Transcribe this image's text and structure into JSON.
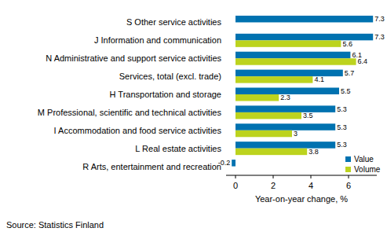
{
  "chart_data": {
    "type": "bar",
    "orientation": "horizontal",
    "categories": [
      "S Other service activities",
      "J Information and communication",
      "N Administrative and support service activities",
      "Services, total (excl. trade)",
      "H Transportation and storage",
      "M Professional, scientific and technical activities",
      "I Accommodation and food service activities",
      "L Real estate activities",
      "R Arts, entertainment and recreation"
    ],
    "series": [
      {
        "name": "Value",
        "color": "#0072b0",
        "values": [
          7.3,
          7.3,
          6.1,
          5.7,
          5.5,
          5.3,
          5.3,
          5.3,
          -0.2
        ]
      },
      {
        "name": "Volume",
        "color": "#bcd31e",
        "values": [
          null,
          5.6,
          6.4,
          4.1,
          2.3,
          3.5,
          3.0,
          3.8,
          null
        ]
      }
    ],
    "x_label": "Year-on-year change, %",
    "source": "Source: Statistics Finland",
    "xlim": [
      -0.5,
      7.5
    ],
    "xticks": [
      0,
      2,
      4,
      6
    ],
    "grid": false,
    "legend": "lower right",
    "data_labels": true
  }
}
